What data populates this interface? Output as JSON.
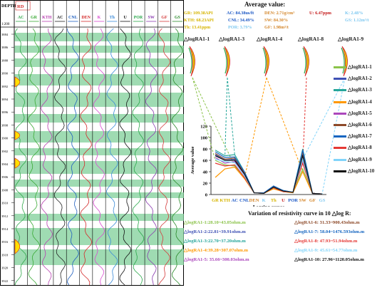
{
  "log_panel": {
    "depth_header": "DEPTH",
    "depth_unit": "1:200",
    "depth_ticks": [
      "3884",
      "3886",
      "3888",
      "3890",
      "3892",
      "3894",
      "3896",
      "3898",
      "3900",
      "3902",
      "3904",
      "3906",
      "3908",
      "3910",
      "3912",
      "3914",
      "3916",
      "3918",
      "3920",
      "3922"
    ],
    "track_headers": [
      {
        "label": "AC",
        "color": "#2fa84a"
      },
      {
        "label": "GR",
        "color": "#3aaa35"
      },
      {
        "label": "KTH",
        "color": "#b83fb0"
      },
      {
        "label": "AC",
        "color": "#222222"
      },
      {
        "label": "CNL",
        "color": "#1f5fbf"
      },
      {
        "label": "DEN",
        "color": "#d42a2a"
      },
      {
        "label": "K",
        "color": "#d84ad0"
      },
      {
        "label": "Th",
        "color": "#3a8ad8"
      },
      {
        "label": "U",
        "color": "#111111"
      },
      {
        "label": "POR",
        "color": "#2aa84a"
      },
      {
        "label": "SW",
        "color": "#8a3ab0"
      },
      {
        "label": "GF",
        "color": "#d43a3a"
      },
      {
        "label": "GS",
        "color": "#2a8a2a"
      }
    ],
    "rd_label": "RD"
  },
  "average_values": {
    "title": "Average value:",
    "lines": [
      [
        {
          "text": "GR: 109.38API",
          "color": "#d6b400"
        },
        {
          "text": "AC: 84.38us/ft",
          "color": "#1a56c4"
        },
        {
          "text": "DEN: 2.71g/cm³",
          "color": "#d4862a"
        },
        {
          "text": "U: 6.47ppm",
          "color": "#c41a1a"
        },
        {
          "text": "K: 2.48%",
          "color": "#7ec8f0"
        }
      ],
      [
        {
          "text": "KTH: 68.23API",
          "color": "#d6b400"
        },
        {
          "text": "CNL: 34.49%",
          "color": "#1a56c4"
        },
        {
          "text": "SW: 84.30%",
          "color": "#d4862a"
        },
        {
          "text": "GS: 1.12m³/t",
          "color": "#7ec8f0"
        }
      ],
      [
        {
          "text": "Th: 13.41ppm",
          "color": "#d6b400"
        },
        {
          "text": "POR: 3.79%",
          "color": "#7ec8f0"
        },
        {
          "text": "GF: 1.98m³/t",
          "color": "#d4862a"
        }
      ]
    ]
  },
  "icons_top": [
    "△logRA1-1",
    "△logRA1-3",
    "△logRA1-4",
    "△logRA1-8",
    "△logRA1-9"
  ],
  "chart_data": {
    "type": "line",
    "ylabel": "Average value",
    "xlabel": "Logging curves",
    "ylim": [
      0,
      120
    ],
    "yticks": [
      0,
      20,
      40,
      60,
      80,
      100,
      120
    ],
    "categories": [
      "GR",
      "KTH",
      "AC",
      "CNL",
      "DEN",
      "K",
      "Th",
      "U",
      "POR",
      "SW",
      "GF",
      "GS"
    ],
    "category_colors": [
      "#d6b400",
      "#d6b400",
      "#1a56c4",
      "#1a56c4",
      "#d4862a",
      "#7ec8f0",
      "#d6b400",
      "#c41a1a",
      "#1a56c4",
      "#d4862a",
      "#d4862a",
      "#7ec8f0"
    ],
    "series": [
      {
        "name": "△logRA1-1",
        "color": "#8bc34a",
        "values": [
          60,
          52,
          50,
          30,
          3,
          2,
          12,
          5,
          4,
          45,
          2,
          1
        ]
      },
      {
        "name": "△logRA1-2",
        "color": "#3f51b5",
        "values": [
          70,
          60,
          62,
          38,
          3,
          3,
          14,
          6,
          4,
          70,
          2,
          1
        ]
      },
      {
        "name": "△logRA1-3",
        "color": "#26a69a",
        "values": [
          78,
          68,
          70,
          40,
          3,
          2,
          14,
          7,
          4,
          80,
          2,
          1
        ]
      },
      {
        "name": "△logRA1-4",
        "color": "#ff9800",
        "values": [
          30,
          45,
          48,
          28,
          3,
          2,
          10,
          5,
          3,
          40,
          2,
          1
        ]
      },
      {
        "name": "△logRA1-5",
        "color": "#ab47bc",
        "values": [
          65,
          55,
          58,
          35,
          3,
          3,
          13,
          6,
          4,
          60,
          2,
          1
        ]
      },
      {
        "name": "△logRA1-6",
        "color": "#8d4a2a",
        "values": [
          72,
          62,
          64,
          38,
          3,
          2,
          14,
          6,
          4,
          75,
          2,
          1
        ]
      },
      {
        "name": "△logRA1-7",
        "color": "#1565c0",
        "values": [
          75,
          65,
          66,
          40,
          3,
          3,
          15,
          7,
          4,
          78,
          2,
          1
        ]
      },
      {
        "name": "△logRA1-8",
        "color": "#e53935",
        "values": [
          55,
          50,
          52,
          30,
          3,
          2,
          12,
          5,
          4,
          55,
          2,
          1
        ]
      },
      {
        "name": "△logRA1-9",
        "color": "#81d4fa",
        "values": [
          62,
          58,
          56,
          33,
          3,
          2,
          13,
          6,
          4,
          62,
          2,
          1
        ]
      },
      {
        "name": "△logRA1-10",
        "color": "#111111",
        "values": [
          68,
          60,
          60,
          36,
          3,
          2,
          13,
          6,
          4,
          68,
          2,
          1
        ]
      }
    ]
  },
  "variation": {
    "title": "Variation of resistivity curve in 10 △log R:",
    "items": [
      {
        "text": "△logRA1-1:28.10~43.05ohm.m",
        "color": "#8bc34a"
      },
      {
        "text": "△logRA1-6: 31.33~900.43ohm.m",
        "color": "#8d4a2a"
      },
      {
        "text": "△logRA1-2:22.81~39.91ohm.m",
        "color": "#3f51b5"
      },
      {
        "text": "△logRA1-7: 58.04~1476.593ohm.m",
        "color": "#1565c0"
      },
      {
        "text": "△logRA1-3:22.70~37.20ohm.m",
        "color": "#26a69a"
      },
      {
        "text": "△logRA1-8: 47.93~51.94ohm.m",
        "color": "#e53935"
      },
      {
        "text": "△logRA1-4:39.28~307.07ohm.m",
        "color": "#ff9800"
      },
      {
        "text": "△logRA1-9: 45.61~54.77ohm.m",
        "color": "#81d4fa"
      },
      {
        "text": "△logRA1-5: 35.66~300.03ohm.m",
        "color": "#ab47bc"
      },
      {
        "text": "△logRA1-10: 27.96~1120.05ohm.m",
        "color": "#111111"
      }
    ]
  }
}
